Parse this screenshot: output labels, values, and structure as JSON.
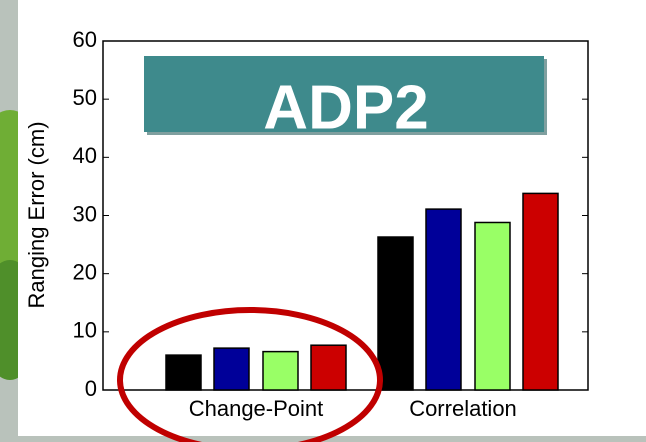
{
  "chart_data": {
    "type": "bar",
    "annotation": "ADP2",
    "ylabel": "Ranging Error (cm)",
    "categories": [
      "Change-Point",
      "Correlation"
    ],
    "series": [
      {
        "color": "#000000",
        "values": [
          6.0,
          26.3
        ]
      },
      {
        "color": "#000099",
        "values": [
          7.2,
          31.1
        ]
      },
      {
        "color": "#99ff66",
        "values": [
          6.6,
          28.8
        ]
      },
      {
        "color": "#cc0000",
        "values": [
          7.7,
          33.8
        ]
      }
    ],
    "ylim": [
      0,
      60
    ],
    "yticks": [
      0,
      10,
      20,
      30,
      40,
      50,
      60
    ]
  }
}
